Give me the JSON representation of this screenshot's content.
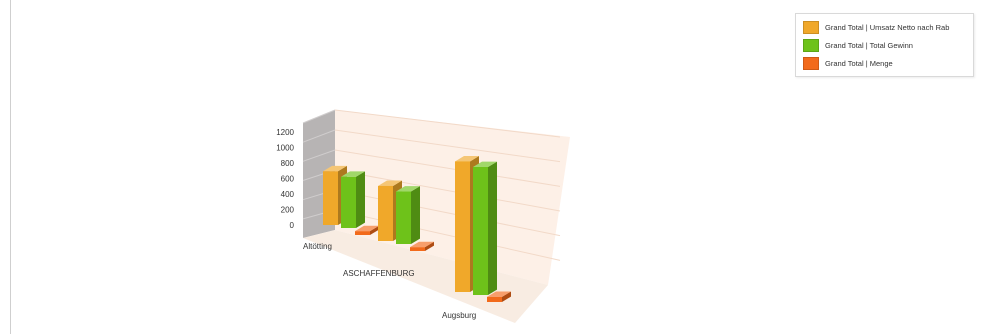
{
  "chart_data": {
    "type": "bar",
    "categories": [
      "Altötting",
      "ASCHAFFENBURG",
      "Augsburg"
    ],
    "series": [
      {
        "name": "Grand Total | Umsatz Netto nach Rab",
        "color": "#f0a82a",
        "values": [
          420,
          430,
          1020
        ]
      },
      {
        "name": "Grand Total | Total Gewinn",
        "color": "#6ec21a",
        "values": [
          400,
          410,
          1000
        ]
      },
      {
        "name": "Grand Total | Menge",
        "color": "#f26a1b",
        "values": [
          30,
          30,
          40
        ]
      }
    ],
    "y_ticks": [
      "0",
      "200",
      "400",
      "600",
      "800",
      "1000",
      "1200"
    ],
    "ylim": [
      0,
      1200
    ],
    "legend_position": "top-right",
    "style": "3d-clustered"
  }
}
